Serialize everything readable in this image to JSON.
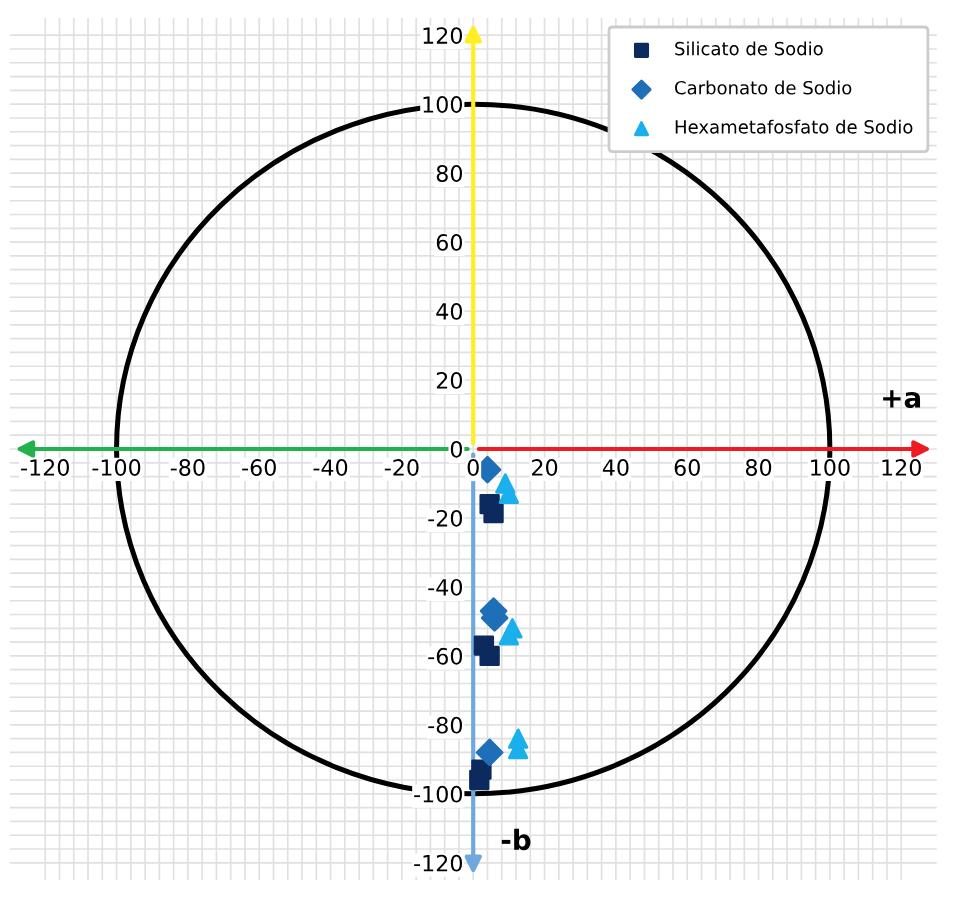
{
  "chart_data": {
    "type": "scatter",
    "xlabel": "+a",
    "ylabel": "-b",
    "xlim": [
      -130,
      130
    ],
    "ylim": [
      -125,
      125
    ],
    "xticks": [
      -120,
      -100,
      -80,
      -60,
      -40,
      -20,
      0,
      20,
      40,
      60,
      80,
      100,
      120
    ],
    "yticks": [
      -120,
      -100,
      -80,
      -60,
      -40,
      -20,
      0,
      20,
      40,
      60,
      80,
      100,
      120
    ],
    "grid": true,
    "legend": "top right",
    "series": [
      {
        "name": "Silicato de Sodio",
        "color": "#0d2a5e",
        "marker": "square",
        "x": [
          5.7,
          4.6,
          3,
          4.6,
          2.3,
          1.7
        ],
        "values": [
          -18.6,
          -16,
          -57,
          -60,
          -93,
          -96
        ]
      },
      {
        "name": "Carbonato de Sodio",
        "color": "#1f6fb8",
        "marker": "diamond",
        "x": [
          4,
          5.7,
          6,
          4.6
        ],
        "values": [
          -6,
          -47,
          -49,
          -88
        ]
      },
      {
        "name": "Hexametafosfato de Sodio",
        "color": "#1ab0ec",
        "marker": "triangle",
        "x": [
          10,
          9,
          11,
          10,
          12.6,
          12.6
        ],
        "values": [
          -13,
          -10,
          -52,
          -54,
          -84,
          -87
        ]
      }
    ]
  }
}
